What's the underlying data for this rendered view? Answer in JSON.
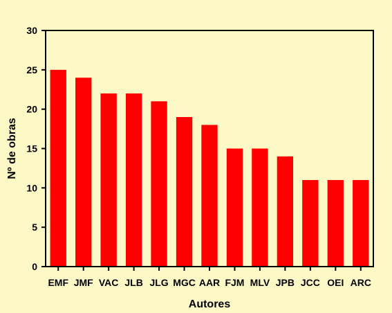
{
  "chart_data": {
    "type": "bar",
    "title": "",
    "xlabel": "Autores",
    "ylabel": "Nº de obras",
    "categories": [
      "EMF",
      "JMF",
      "VAC",
      "JLB",
      "JLG",
      "MGC",
      "AAR",
      "FJM",
      "MLV",
      "JPB",
      "JCC",
      "OEI",
      "ARC"
    ],
    "values": [
      25,
      24,
      22,
      22,
      21,
      19,
      18,
      15,
      15,
      14,
      11,
      11,
      11
    ],
    "ylim": [
      0,
      30
    ],
    "yticks": [
      0,
      5,
      10,
      15,
      20,
      25,
      30
    ],
    "grid": false,
    "bar_color": "#ff0000",
    "background": "#fdf9c6"
  }
}
